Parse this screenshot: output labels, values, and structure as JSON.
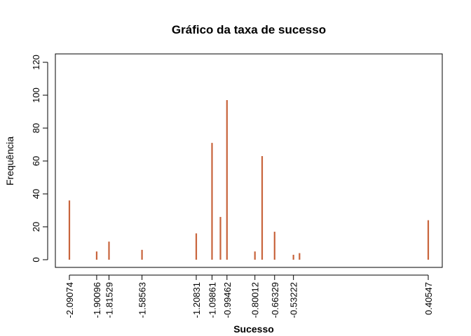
{
  "chart_data": {
    "type": "bar",
    "title": "Gráfico da taxa de sucesso",
    "xlabel": "Sucesso",
    "ylabel": "Frequência",
    "ylim": [
      0,
      120
    ],
    "yticks": [
      0,
      20,
      40,
      60,
      80,
      100,
      120
    ],
    "xlim": [
      -2.2,
      0.55
    ],
    "x": [
      -2.09074,
      -1.90096,
      -1.81529,
      -1.58563,
      -1.20831,
      -1.09861,
      -1.04,
      -0.99462,
      -0.80012,
      -0.75,
      -0.66329,
      -0.53222,
      -0.49
    ],
    "values": [
      36,
      5,
      11,
      6,
      16,
      71,
      26,
      97,
      5,
      63,
      17,
      3,
      4
    ],
    "extra_points": [
      {
        "x": 0.40547,
        "value": 24
      }
    ],
    "xtick_labels": [
      "-2.09074",
      "-1.90096",
      "-1.81529",
      "-1.58563",
      "-1.20831",
      "-1.09861",
      "-0.99462",
      "-0.80012",
      "-0.66329",
      "-0.53222",
      "0.40547"
    ],
    "xtick_values": [
      -2.09074,
      -1.90096,
      -1.81529,
      -1.58563,
      -1.20831,
      -1.09861,
      -0.99462,
      -0.80012,
      -0.66329,
      -0.53222,
      0.40547
    ],
    "bar_color": "#c8643c",
    "grid": false
  }
}
